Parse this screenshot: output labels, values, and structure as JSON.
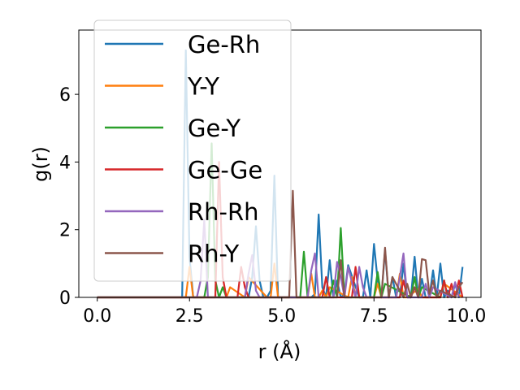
{
  "chart_data": {
    "type": "line",
    "xlabel": "r (Å)",
    "ylabel": "g(r)",
    "xlim": [
      -0.5,
      10.4
    ],
    "ylim": [
      0,
      7.9
    ],
    "xticks": [
      "0.0",
      "2.5",
      "5.0",
      "7.5",
      "10.0"
    ],
    "xtick_values": [
      0,
      2.5,
      5,
      7.5,
      10
    ],
    "yticks": [
      "0",
      "2",
      "4",
      "6"
    ],
    "ytick_values": [
      0,
      2,
      4,
      6
    ],
    "grid": false,
    "legend_position": "top-left",
    "series": [
      {
        "name": "Ge-Rh",
        "color": "#1f77b4",
        "x": [
          0,
          2.2,
          2.3,
          2.4,
          2.5,
          2.6,
          4.1,
          4.2,
          4.3,
          4.4,
          4.5,
          4.6,
          4.7,
          4.8,
          4.9,
          5.0,
          5.1,
          5.8,
          5.9,
          6.0,
          6.1,
          6.2,
          6.3,
          6.4,
          6.5,
          6.6,
          6.7,
          6.8,
          7.1,
          7.2,
          7.3,
          7.4,
          7.5,
          7.6,
          7.7,
          7.8,
          7.9,
          8.0,
          8.1,
          8.2,
          8.3,
          8.4,
          8.5,
          8.6,
          8.7,
          8.8,
          8.9,
          9.0,
          9.1,
          9.2,
          9.3,
          9.4,
          9.5,
          9.6,
          9.7,
          9.8,
          9.9
        ],
        "y": [
          0,
          0,
          0,
          7.3,
          1.2,
          0,
          0,
          0.6,
          2.1,
          0.5,
          0,
          0,
          0.2,
          3.6,
          0,
          0,
          0,
          0,
          0.1,
          2.45,
          0.3,
          0,
          1.1,
          0,
          0.5,
          0,
          0.1,
          0.95,
          0,
          0,
          0.8,
          0,
          1.58,
          0.5,
          0,
          1.4,
          0,
          0.6,
          0,
          0,
          1.0,
          0,
          0,
          1.2,
          0,
          0.55,
          0,
          0,
          0.8,
          0,
          1.0,
          0,
          0.2,
          0,
          0.4,
          0,
          0.9
        ]
      },
      {
        "name": "Y-Y",
        "color": "#ff7f0e",
        "x": [
          0,
          2.4,
          2.5,
          2.6,
          3.5,
          3.6,
          4.0,
          4.1,
          4.6,
          4.7,
          4.8,
          4.9,
          5.7,
          5.8,
          5.9,
          6.0,
          6.1,
          6.2,
          6.3,
          6.8,
          6.9,
          7.0,
          7.5,
          7.6,
          7.7,
          8.1,
          8.2,
          8.3,
          8.4,
          8.7,
          8.8,
          9.3,
          9.4,
          9.9
        ],
        "y": [
          0,
          0,
          0.9,
          0,
          0,
          0.3,
          0,
          0.6,
          0,
          0,
          1.0,
          0,
          0,
          0.7,
          0,
          0,
          0.2,
          0,
          0.3,
          0,
          0.6,
          0,
          0,
          0.4,
          0,
          0,
          0.7,
          0,
          0,
          0.25,
          0,
          0,
          0.4,
          0
        ]
      },
      {
        "name": "Ge-Y",
        "color": "#2ca02c",
        "x": [
          0,
          2.9,
          3.0,
          3.1,
          3.2,
          3.3,
          3.4,
          3.5,
          5.5,
          5.6,
          5.7,
          6.3,
          6.4,
          6.5,
          6.6,
          6.7,
          7.5,
          7.6,
          7.7,
          7.8,
          8.5,
          8.6,
          8.7,
          8.8,
          9.3,
          9.4,
          9.5
        ],
        "y": [
          0,
          0,
          0.6,
          4.55,
          0.5,
          0,
          0.3,
          0,
          0,
          1.35,
          0,
          0,
          0.5,
          0,
          2.05,
          0,
          0,
          0.75,
          0,
          0.4,
          0,
          0.6,
          0,
          0.3,
          0,
          0.5,
          0
        ]
      },
      {
        "name": "Ge-Ge",
        "color": "#d62728",
        "x": [
          0,
          3.2,
          3.3,
          3.4,
          3.5,
          3.6,
          3.8,
          3.9,
          4.0,
          4.1,
          6.0,
          6.1,
          6.2,
          6.3,
          6.8,
          6.9,
          7.0,
          7.1,
          8.2,
          8.3,
          8.4,
          8.5,
          8.6,
          8.7,
          9.2,
          9.3,
          9.4,
          9.5,
          9.6,
          9.7,
          9.8,
          9.9
        ],
        "y": [
          0,
          0,
          4.0,
          0.6,
          0,
          0,
          0,
          0.9,
          0.3,
          0,
          0,
          0,
          0.6,
          0,
          0,
          0,
          0.9,
          0,
          0,
          0.5,
          0,
          0,
          0.3,
          0,
          0,
          0,
          0.5,
          0,
          0.4,
          0,
          0.5,
          0
        ]
      },
      {
        "name": "Rh-Rh",
        "color": "#9467bd",
        "x": [
          0,
          2.7,
          2.8,
          2.9,
          3.0,
          4.0,
          4.1,
          4.2,
          4.3,
          4.4,
          5.7,
          5.8,
          5.9,
          6.0,
          6.4,
          6.5,
          6.6,
          6.7,
          6.8,
          7.0,
          7.1,
          7.2,
          7.3,
          7.4,
          8.1,
          8.2,
          8.3,
          8.4,
          8.8,
          8.9,
          9.0,
          9.1,
          9.6,
          9.7,
          9.8
        ],
        "y": [
          0,
          0,
          0.5,
          2.3,
          0,
          0,
          0.7,
          1.25,
          0.2,
          0,
          0,
          0.8,
          1.3,
          0,
          0,
          1.05,
          0.6,
          0,
          0.9,
          0,
          0.9,
          0.3,
          0,
          0,
          0,
          0.6,
          1.3,
          0,
          0,
          0.4,
          0,
          0.3,
          0,
          0.45,
          0
        ]
      },
      {
        "name": "Rh-Y",
        "color": "#8c564b",
        "x": [
          0,
          5.1,
          5.2,
          5.3,
          5.4,
          6.5,
          6.6,
          6.7,
          7.7,
          7.8,
          7.9,
          8.0,
          8.3,
          8.4,
          8.5,
          8.6,
          8.7,
          8.8,
          8.9,
          9.0,
          9.1,
          9.2,
          9.3,
          9.7,
          9.8,
          9.9
        ],
        "y": [
          0,
          0,
          0,
          3.15,
          0,
          0,
          1.1,
          0,
          0,
          1.47,
          0,
          0.6,
          0,
          0.4,
          0,
          0.3,
          0,
          1.13,
          1.1,
          0.1,
          0.5,
          0,
          0.2,
          0,
          0.3,
          0.45
        ]
      }
    ]
  }
}
